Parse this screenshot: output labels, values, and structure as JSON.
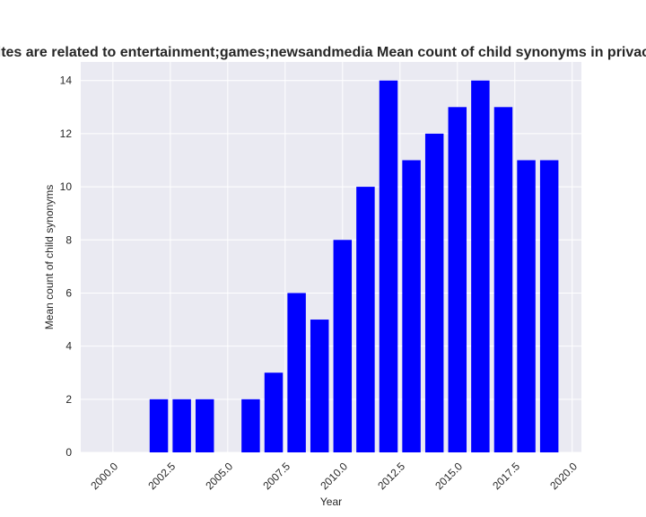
{
  "chart_data": {
    "type": "bar",
    "title": "Websites are related to entertainment;games;newsandmedia Mean count of child synonyms in privacy policy",
    "xlabel": "Year",
    "ylabel": "Mean count of child synonyms",
    "x": [
      2002,
      2003,
      2004,
      2006,
      2007,
      2008,
      2009,
      2010,
      2011,
      2012,
      2013,
      2014,
      2015,
      2016,
      2017,
      2018,
      2019
    ],
    "values": [
      2,
      2,
      2,
      2,
      3,
      6,
      5,
      8,
      10,
      14,
      11,
      12,
      13,
      14,
      13,
      11,
      11
    ],
    "xlim": [
      1998.6,
      2020.4
    ],
    "ylim": [
      0,
      14.7
    ],
    "xticks": [
      2000.0,
      2002.5,
      2005.0,
      2007.5,
      2010.0,
      2012.5,
      2015.0,
      2017.5,
      2020.0
    ],
    "xtick_labels": [
      "2000.0",
      "2002.5",
      "2005.0",
      "2007.5",
      "2010.0",
      "2012.5",
      "2015.0",
      "2017.5",
      "2020.0"
    ],
    "yticks": [
      0,
      2,
      4,
      6,
      8,
      10,
      12,
      14
    ],
    "ytick_labels": [
      "0",
      "2",
      "4",
      "6",
      "8",
      "10",
      "12",
      "14"
    ],
    "bar_color": "#0000ff",
    "background_color": "#eaeaf2",
    "grid_color": "#ffffff",
    "grid": true
  }
}
